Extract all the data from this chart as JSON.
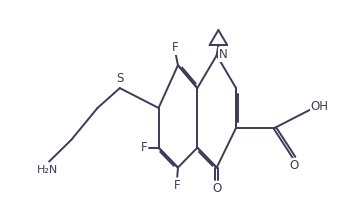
{
  "background_color": "#ffffff",
  "line_color": "#3c3c5a",
  "text_color": "#3c3c5a",
  "line_width": 1.4,
  "font_size": 8.5,
  "figsize": [
    3.52,
    2.06
  ],
  "dpi": 100,
  "xlim": [
    0,
    10
  ],
  "ylim": [
    0,
    6
  ]
}
